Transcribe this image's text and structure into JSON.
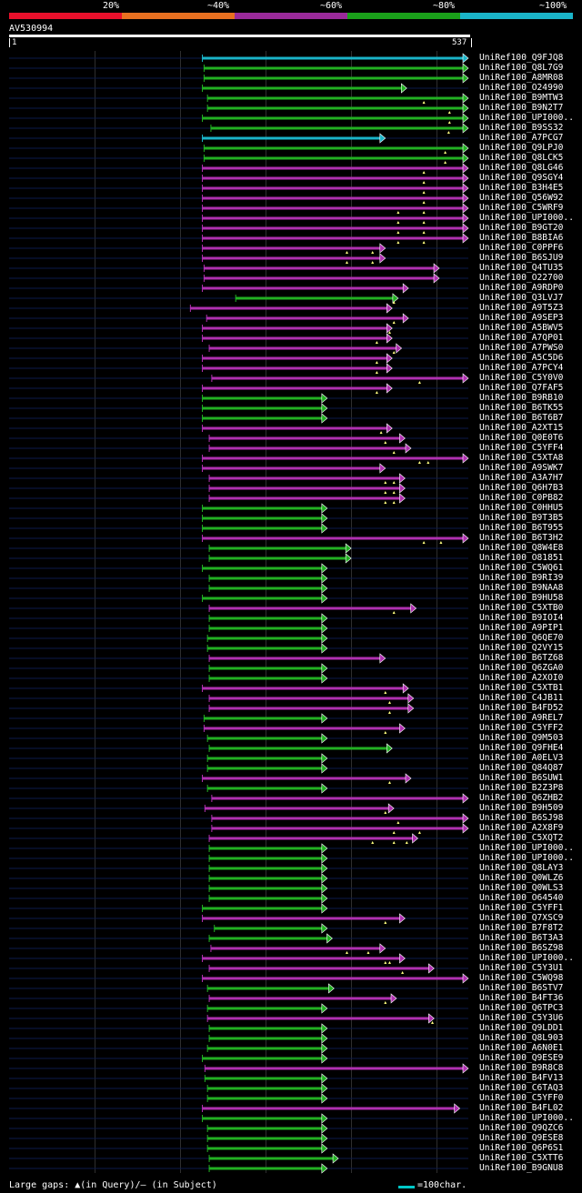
{
  "header": {
    "scale_labels": [
      "20%",
      "~40%",
      "~60%",
      "~80%",
      "~100%"
    ],
    "colors": [
      "#e8102b",
      "#e87020",
      "#9a2a9a",
      "#1aa01a",
      "#1ab4c8"
    ]
  },
  "query": {
    "name": "AV530994",
    "start": "1",
    "end": "537"
  },
  "footer": {
    "gaps_text": "Large gaps: ▲(in Query)/— (in Subject)",
    "legend_text": "=100char."
  },
  "chart_data": {
    "type": "alignment",
    "query_length": 537,
    "category_colors": {
      "cyan": "#1ab4c8",
      "green": "#22b022",
      "purple": "#b030b0"
    },
    "hits": [
      {
        "name": "UniRef100_Q9FJQ8",
        "start": 226,
        "end": 537,
        "color": "cyan",
        "gaps": []
      },
      {
        "name": "UniRef100_Q8L7G9",
        "start": 228,
        "end": 537,
        "color": "green",
        "gaps": []
      },
      {
        "name": "UniRef100_A8MR08",
        "start": 228,
        "end": 537,
        "color": "green",
        "gaps": []
      },
      {
        "name": "UniRef100_O24990",
        "start": 226,
        "end": 465,
        "color": "green",
        "gaps": []
      },
      {
        "name": "UniRef100_B9MTW3",
        "start": 232,
        "end": 537,
        "color": "green",
        "gaps": [
          485
        ]
      },
      {
        "name": "UniRef100_B9N2T7",
        "start": 232,
        "end": 537,
        "color": "green",
        "gaps": [
          515
        ]
      },
      {
        "name": "UniRef100_UPI000..",
        "start": 226,
        "end": 537,
        "color": "green",
        "gaps": [
          515
        ]
      },
      {
        "name": "UniRef100_B9SS32",
        "start": 236,
        "end": 537,
        "color": "green",
        "gaps": [
          514
        ]
      },
      {
        "name": "UniRef100_A7PCG7",
        "start": 226,
        "end": 440,
        "color": "cyan",
        "gaps": []
      },
      {
        "name": "UniRef100_Q9LPJ0",
        "start": 228,
        "end": 537,
        "color": "green",
        "gaps": [
          510
        ]
      },
      {
        "name": "UniRef100_Q8LCK5",
        "start": 228,
        "end": 537,
        "color": "green",
        "gaps": [
          510
        ]
      },
      {
        "name": "UniRef100_Q8LG46",
        "start": 226,
        "end": 537,
        "color": "purple",
        "gaps": [
          485
        ]
      },
      {
        "name": "UniRef100_Q9SGY4",
        "start": 226,
        "end": 537,
        "color": "purple",
        "gaps": [
          485
        ]
      },
      {
        "name": "UniRef100_B3H4E5",
        "start": 226,
        "end": 537,
        "color": "purple",
        "gaps": [
          485
        ]
      },
      {
        "name": "UniRef100_Q56W92",
        "start": 226,
        "end": 537,
        "color": "purple",
        "gaps": [
          485
        ]
      },
      {
        "name": "UniRef100_C5WRF9",
        "start": 226,
        "end": 537,
        "color": "purple",
        "gaps": [
          455,
          485
        ]
      },
      {
        "name": "UniRef100_UPI000..",
        "start": 226,
        "end": 537,
        "color": "purple",
        "gaps": [
          455,
          485
        ]
      },
      {
        "name": "UniRef100_B9GT20",
        "start": 226,
        "end": 537,
        "color": "purple",
        "gaps": [
          455,
          485
        ]
      },
      {
        "name": "UniRef100_B8BIA6",
        "start": 226,
        "end": 537,
        "color": "purple",
        "gaps": [
          455,
          485
        ]
      },
      {
        "name": "UniRef100_C0PPF6",
        "start": 226,
        "end": 440,
        "color": "purple",
        "gaps": [
          395,
          425
        ]
      },
      {
        "name": "UniRef100_B6SJU9",
        "start": 226,
        "end": 440,
        "color": "purple",
        "gaps": [
          395,
          425
        ]
      },
      {
        "name": "UniRef100_Q4TU35",
        "start": 228,
        "end": 503,
        "color": "purple",
        "gaps": []
      },
      {
        "name": "UniRef100_O22700",
        "start": 228,
        "end": 503,
        "color": "purple",
        "gaps": []
      },
      {
        "name": "UniRef100_A9RDP0",
        "start": 226,
        "end": 467,
        "color": "purple",
        "gaps": []
      },
      {
        "name": "UniRef100_Q3LVJ7",
        "start": 265,
        "end": 455,
        "color": "green",
        "gaps": [
          450
        ]
      },
      {
        "name": "UniRef100_A9T5Z3",
        "start": 212,
        "end": 448,
        "color": "purple",
        "gaps": []
      },
      {
        "name": "UniRef100_A9SEP3",
        "start": 231,
        "end": 467,
        "color": "purple",
        "gaps": [
          450
        ]
      },
      {
        "name": "UniRef100_A5BWV5",
        "start": 226,
        "end": 448,
        "color": "purple",
        "gaps": [
          445
        ]
      },
      {
        "name": "UniRef100_A7QP01",
        "start": 226,
        "end": 448,
        "color": "purple",
        "gaps": [
          430
        ]
      },
      {
        "name": "UniRef100_A7PWS0",
        "start": 234,
        "end": 459,
        "color": "purple",
        "gaps": [
          450
        ]
      },
      {
        "name": "UniRef100_A5C5D6",
        "start": 226,
        "end": 448,
        "color": "purple",
        "gaps": [
          430
        ]
      },
      {
        "name": "UniRef100_A7PCY4",
        "start": 226,
        "end": 448,
        "color": "purple",
        "gaps": [
          430
        ]
      },
      {
        "name": "UniRef100_C5Y0V0",
        "start": 237,
        "end": 537,
        "color": "purple",
        "gaps": [
          480
        ]
      },
      {
        "name": "UniRef100_Q7FAF5",
        "start": 226,
        "end": 448,
        "color": "purple",
        "gaps": [
          430
        ]
      },
      {
        "name": "UniRef100_B9RB10",
        "start": 226,
        "end": 372,
        "color": "green",
        "gaps": []
      },
      {
        "name": "UniRef100_B6TK55",
        "start": 226,
        "end": 372,
        "color": "green",
        "gaps": []
      },
      {
        "name": "UniRef100_B6T6B7",
        "start": 226,
        "end": 372,
        "color": "green",
        "gaps": []
      },
      {
        "name": "UniRef100_A2XT15",
        "start": 226,
        "end": 448,
        "color": "purple",
        "gaps": [
          435
        ]
      },
      {
        "name": "UniRef100_Q0E0T6",
        "start": 234,
        "end": 463,
        "color": "purple",
        "gaps": [
          440
        ]
      },
      {
        "name": "UniRef100_C5YFF4",
        "start": 234,
        "end": 470,
        "color": "purple",
        "gaps": [
          450
        ]
      },
      {
        "name": "UniRef100_C5XTA8",
        "start": 226,
        "end": 537,
        "color": "purple",
        "gaps": [
          480,
          490
        ]
      },
      {
        "name": "UniRef100_A9SWK7",
        "start": 226,
        "end": 440,
        "color": "purple",
        "gaps": []
      },
      {
        "name": "UniRef100_A3A7H7",
        "start": 234,
        "end": 463,
        "color": "purple",
        "gaps": [
          440,
          450
        ]
      },
      {
        "name": "UniRef100_Q6H7B3",
        "start": 234,
        "end": 463,
        "color": "purple",
        "gaps": [
          440,
          450
        ]
      },
      {
        "name": "UniRef100_C0PB82",
        "start": 234,
        "end": 463,
        "color": "purple",
        "gaps": [
          440,
          450
        ]
      },
      {
        "name": "UniRef100_C0HHU5",
        "start": 226,
        "end": 372,
        "color": "green",
        "gaps": []
      },
      {
        "name": "UniRef100_B9T3B5",
        "start": 226,
        "end": 372,
        "color": "green",
        "gaps": []
      },
      {
        "name": "UniRef100_B6T955",
        "start": 226,
        "end": 372,
        "color": "green",
        "gaps": []
      },
      {
        "name": "UniRef100_B6T3H2",
        "start": 226,
        "end": 537,
        "color": "purple",
        "gaps": [
          485,
          505
        ]
      },
      {
        "name": "UniRef100_Q8W4E8",
        "start": 234,
        "end": 400,
        "color": "green",
        "gaps": []
      },
      {
        "name": "UniRef100_O81851",
        "start": 234,
        "end": 400,
        "color": "green",
        "gaps": []
      },
      {
        "name": "UniRef100_C5WQ61",
        "start": 226,
        "end": 372,
        "color": "green",
        "gaps": []
      },
      {
        "name": "UniRef100_B9RI39",
        "start": 234,
        "end": 372,
        "color": "green",
        "gaps": []
      },
      {
        "name": "UniRef100_B9NAA8",
        "start": 234,
        "end": 372,
        "color": "green",
        "gaps": []
      },
      {
        "name": "UniRef100_B9HU58",
        "start": 226,
        "end": 372,
        "color": "green",
        "gaps": []
      },
      {
        "name": "UniRef100_C5XTB0",
        "start": 234,
        "end": 476,
        "color": "purple",
        "gaps": [
          450
        ]
      },
      {
        "name": "UniRef100_B9IOI4",
        "start": 234,
        "end": 372,
        "color": "green",
        "gaps": []
      },
      {
        "name": "UniRef100_A9PIP1",
        "start": 234,
        "end": 372,
        "color": "green",
        "gaps": []
      },
      {
        "name": "UniRef100_Q6QE70",
        "start": 232,
        "end": 372,
        "color": "green",
        "gaps": []
      },
      {
        "name": "UniRef100_Q2VY15",
        "start": 232,
        "end": 372,
        "color": "green",
        "gaps": []
      },
      {
        "name": "UniRef100_B6TZ68",
        "start": 234,
        "end": 440,
        "color": "purple",
        "gaps": []
      },
      {
        "name": "UniRef100_Q6ZGA0",
        "start": 234,
        "end": 372,
        "color": "green",
        "gaps": []
      },
      {
        "name": "UniRef100_A2XOI0",
        "start": 234,
        "end": 372,
        "color": "green",
        "gaps": []
      },
      {
        "name": "UniRef100_C5XTB1",
        "start": 226,
        "end": 467,
        "color": "purple",
        "gaps": [
          440
        ]
      },
      {
        "name": "UniRef100_C4JB11",
        "start": 234,
        "end": 473,
        "color": "purple",
        "gaps": [
          445
        ]
      },
      {
        "name": "UniRef100_B4FD52",
        "start": 234,
        "end": 473,
        "color": "purple",
        "gaps": [
          445
        ]
      },
      {
        "name": "UniRef100_A9REL7",
        "start": 228,
        "end": 372,
        "color": "green",
        "gaps": []
      },
      {
        "name": "UniRef100_C5YFF2",
        "start": 228,
        "end": 463,
        "color": "purple",
        "gaps": [
          440
        ]
      },
      {
        "name": "UniRef100_Q9M503",
        "start": 232,
        "end": 372,
        "color": "green",
        "gaps": []
      },
      {
        "name": "UniRef100_Q9FHE4",
        "start": 234,
        "end": 448,
        "color": "green",
        "gaps": []
      },
      {
        "name": "UniRef100_A0ELV3",
        "start": 232,
        "end": 372,
        "color": "green",
        "gaps": []
      },
      {
        "name": "UniRef100_Q84Q87",
        "start": 232,
        "end": 372,
        "color": "green",
        "gaps": []
      },
      {
        "name": "UniRef100_B6SUW1",
        "start": 226,
        "end": 470,
        "color": "purple",
        "gaps": [
          445
        ]
      },
      {
        "name": "UniRef100_B2Z3P8",
        "start": 232,
        "end": 372,
        "color": "green",
        "gaps": []
      },
      {
        "name": "UniRef100_Q6ZHB2",
        "start": 237,
        "end": 537,
        "color": "purple",
        "gaps": []
      },
      {
        "name": "UniRef100_B9H509",
        "start": 229,
        "end": 450,
        "color": "purple",
        "gaps": [
          440
        ]
      },
      {
        "name": "UniRef100_B6SJ98",
        "start": 237,
        "end": 537,
        "color": "purple",
        "gaps": [
          455
        ]
      },
      {
        "name": "UniRef100_A2X8F9",
        "start": 237,
        "end": 537,
        "color": "purple",
        "gaps": [
          450,
          480
        ]
      },
      {
        "name": "UniRef100_C5XQT2",
        "start": 234,
        "end": 478,
        "color": "purple",
        "gaps": [
          425,
          450,
          465
        ]
      },
      {
        "name": "UniRef100_UPI000..",
        "start": 234,
        "end": 372,
        "color": "green",
        "gaps": []
      },
      {
        "name": "UniRef100_UPI000..",
        "start": 234,
        "end": 372,
        "color": "green",
        "gaps": []
      },
      {
        "name": "UniRef100_Q8LAY3",
        "start": 234,
        "end": 372,
        "color": "green",
        "gaps": []
      },
      {
        "name": "UniRef100_Q0WLZ6",
        "start": 234,
        "end": 372,
        "color": "green",
        "gaps": []
      },
      {
        "name": "UniRef100_Q0WLS3",
        "start": 234,
        "end": 372,
        "color": "green",
        "gaps": []
      },
      {
        "name": "UniRef100_O64540",
        "start": 234,
        "end": 372,
        "color": "green",
        "gaps": []
      },
      {
        "name": "UniRef100_C5YFF1",
        "start": 226,
        "end": 372,
        "color": "green",
        "gaps": []
      },
      {
        "name": "UniRef100_Q7XSC9",
        "start": 226,
        "end": 463,
        "color": "purple",
        "gaps": [
          440
        ]
      },
      {
        "name": "UniRef100_B7F8T2",
        "start": 240,
        "end": 372,
        "color": "green",
        "gaps": []
      },
      {
        "name": "UniRef100_B6T3A3",
        "start": 234,
        "end": 378,
        "color": "green",
        "gaps": []
      },
      {
        "name": "UniRef100_B6SZ98",
        "start": 236,
        "end": 440,
        "color": "purple",
        "gaps": [
          395,
          420
        ]
      },
      {
        "name": "UniRef100_UPI000..",
        "start": 226,
        "end": 463,
        "color": "purple",
        "gaps": [
          440,
          445
        ]
      },
      {
        "name": "UniRef100_C5Y3U1",
        "start": 234,
        "end": 497,
        "color": "purple",
        "gaps": [
          460
        ]
      },
      {
        "name": "UniRef100_C5WQ98",
        "start": 226,
        "end": 537,
        "color": "purple",
        "gaps": []
      },
      {
        "name": "UniRef100_B6STV7",
        "start": 232,
        "end": 380,
        "color": "green",
        "gaps": []
      },
      {
        "name": "UniRef100_B4FT36",
        "start": 234,
        "end": 453,
        "color": "purple",
        "gaps": [
          440
        ]
      },
      {
        "name": "UniRef100_Q6TPC3",
        "start": 232,
        "end": 372,
        "color": "green",
        "gaps": []
      },
      {
        "name": "UniRef100_C5Y3U6",
        "start": 232,
        "end": 497,
        "color": "purple",
        "gaps": [
          495
        ]
      },
      {
        "name": "UniRef100_Q9LDD1",
        "start": 234,
        "end": 372,
        "color": "green",
        "gaps": []
      },
      {
        "name": "UniRef100_Q8L903",
        "start": 234,
        "end": 372,
        "color": "green",
        "gaps": []
      },
      {
        "name": "UniRef100_A6N0E1",
        "start": 232,
        "end": 372,
        "color": "green",
        "gaps": []
      },
      {
        "name": "UniRef100_Q9ESE9",
        "start": 226,
        "end": 372,
        "color": "green",
        "gaps": []
      },
      {
        "name": "UniRef100_B9R8C8",
        "start": 229,
        "end": 537,
        "color": "purple",
        "gaps": []
      },
      {
        "name": "UniRef100_B4FV13",
        "start": 229,
        "end": 372,
        "color": "green",
        "gaps": []
      },
      {
        "name": "UniRef100_C6TAQ3",
        "start": 232,
        "end": 372,
        "color": "green",
        "gaps": []
      },
      {
        "name": "UniRef100_C5YFF0",
        "start": 232,
        "end": 372,
        "color": "green",
        "gaps": []
      },
      {
        "name": "UniRef100_B4FL02",
        "start": 226,
        "end": 527,
        "color": "purple",
        "gaps": []
      },
      {
        "name": "UniRef100_UPI000..",
        "start": 226,
        "end": 372,
        "color": "green",
        "gaps": []
      },
      {
        "name": "UniRef100_Q9QZC6",
        "start": 232,
        "end": 372,
        "color": "green",
        "gaps": []
      },
      {
        "name": "UniRef100_Q9ESE8",
        "start": 232,
        "end": 372,
        "color": "green",
        "gaps": []
      },
      {
        "name": "UniRef100_Q6P6S1",
        "start": 232,
        "end": 372,
        "color": "green",
        "gaps": []
      },
      {
        "name": "UniRef100_C5XTT6",
        "start": 234,
        "end": 385,
        "color": "green",
        "gaps": []
      },
      {
        "name": "UniRef100_B9GNU8",
        "start": 234,
        "end": 372,
        "color": "green",
        "gaps": []
      }
    ]
  }
}
